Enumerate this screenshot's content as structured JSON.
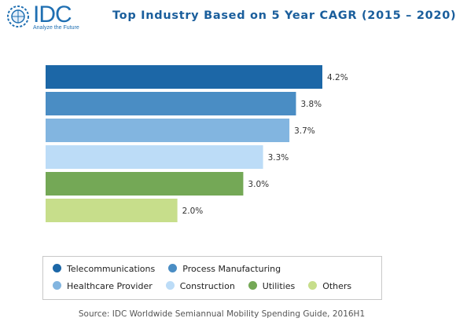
{
  "logo": {
    "text": "IDC",
    "tagline": "Analyze the Future"
  },
  "chart_data": {
    "type": "bar",
    "orientation": "horizontal",
    "title": "Top Industry Based on 5 Year CAGR (2015 – 2020)",
    "categories": [
      "Telecommunications",
      "Process Manufacturing",
      "Healthcare Provider",
      "Construction",
      "Utilities",
      "Others"
    ],
    "values": [
      4.2,
      3.8,
      3.7,
      3.3,
      3.0,
      2.0
    ],
    "value_labels": [
      "4.2%",
      "3.8%",
      "3.7%",
      "3.3%",
      "3.0%",
      "2.0%"
    ],
    "colors": [
      "#1c67a7",
      "#4a8dc4",
      "#82b5e0",
      "#bcdcf7",
      "#74a856",
      "#c7de8b"
    ],
    "xlim": [
      0,
      4.2
    ],
    "grid": false,
    "legend": "bottom",
    "source": "Source: IDC Worldwide Semiannual Mobility Spending Guide, 2016H1"
  }
}
